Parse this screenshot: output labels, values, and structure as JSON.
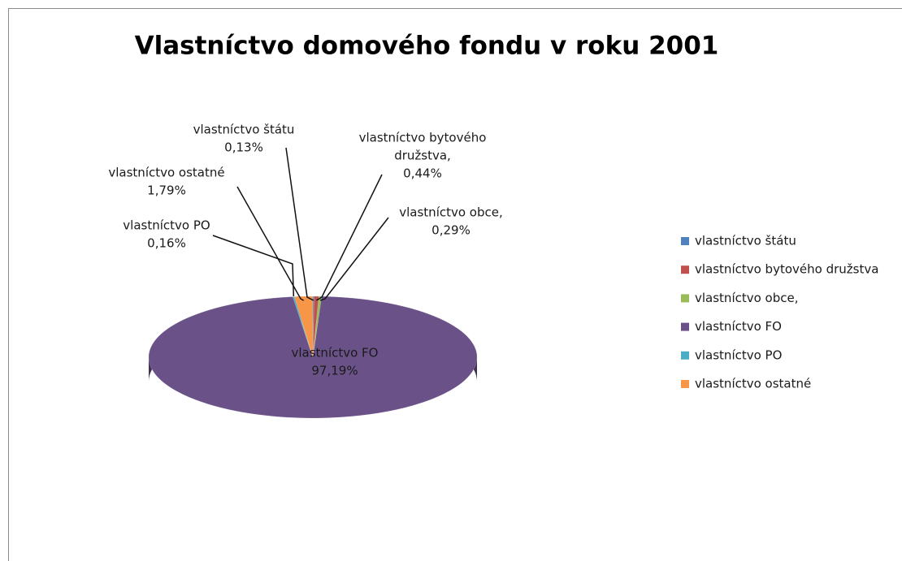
{
  "chart_data": {
    "type": "pie3d",
    "title": "Vlastníctvo domového fondu v roku 2001",
    "categories": [
      "vlastníctvo štátu",
      "vlastníctvo bytového družstva",
      "vlastníctvo obce,",
      "vlastníctvo FO",
      "vlastníctvo PO",
      "vlastníctvo ostatné"
    ],
    "values": [
      0.13,
      0.44,
      0.29,
      97.19,
      0.16,
      1.79
    ],
    "value_labels": [
      "0,13%",
      "0,44%",
      "0,29%",
      "97,19%",
      "0,16%",
      "1,79%"
    ],
    "label_names": [
      [
        "vlastníctvo štátu"
      ],
      [
        "vlastníctvo bytového",
        "družstva,"
      ],
      [
        "vlastníctvo obce,"
      ],
      [
        "vlastníctvo FO"
      ],
      [
        "vlastníctvo PO"
      ],
      [
        "vlastníctvo ostatné"
      ]
    ],
    "colors": [
      "#4f81bd",
      "#c0504d",
      "#9bbb59",
      "#6a5289",
      "#4bacc6",
      "#f79646"
    ],
    "legend": "right"
  }
}
